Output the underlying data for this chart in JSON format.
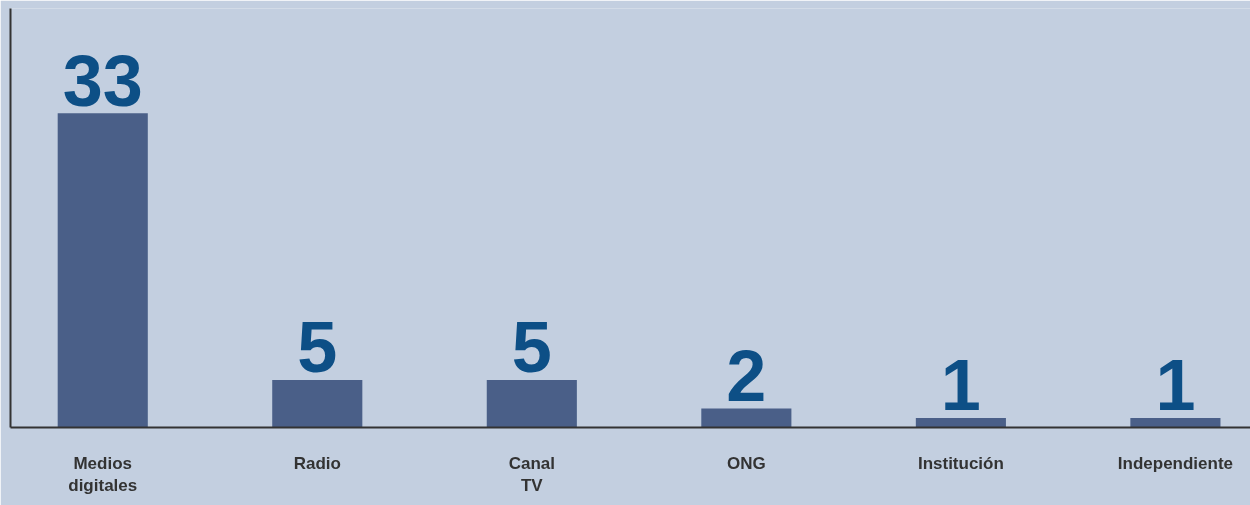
{
  "chart_data": {
    "type": "bar",
    "categories": [
      "Medios digitales",
      "Radio",
      "Canal TV",
      "ONG",
      "Institución",
      "Independiente"
    ],
    "values": [
      33,
      5,
      5,
      2,
      1,
      1
    ],
    "color": "#4a5f88",
    "data_labels": true,
    "ylim": [
      0,
      44
    ],
    "tick_labels": "x",
    "grid": false
  }
}
